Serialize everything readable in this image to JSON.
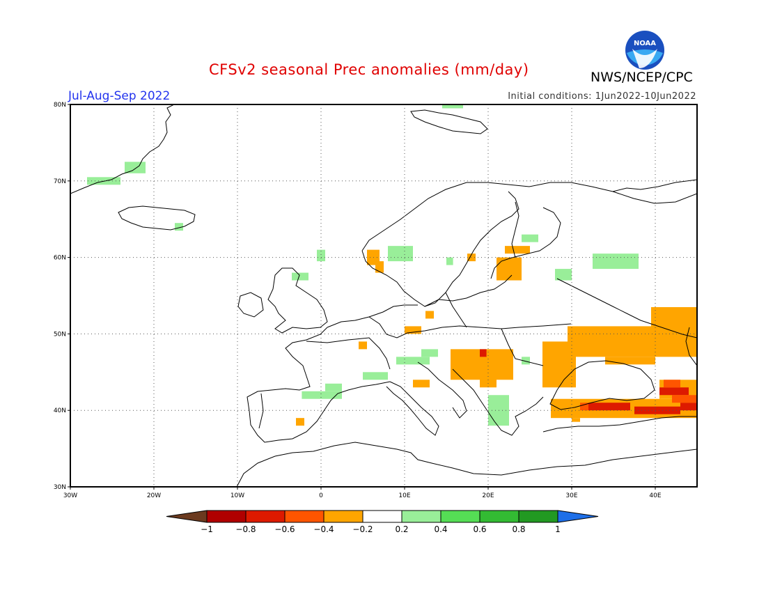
{
  "header": {
    "title": "CFSv2 seasonal Prec anomalies (mm/day)",
    "org": "NWS/NCEP/CPC",
    "period": "Jul-Aug-Sep 2022",
    "initial_conditions": "Initial conditions: 1Jun2022-10Jun2022"
  },
  "logo": {
    "text": "NOAA"
  },
  "map": {
    "lon_range": [
      -30,
      45
    ],
    "lat_range": [
      30,
      80
    ],
    "lat_ticks": [
      {
        "value": 30,
        "label": "30N"
      },
      {
        "value": 40,
        "label": "40N"
      },
      {
        "value": 50,
        "label": "50N"
      },
      {
        "value": 60,
        "label": "60N"
      },
      {
        "value": 70,
        "label": "70N"
      },
      {
        "value": 80,
        "label": "80N"
      }
    ],
    "lon_ticks": [
      {
        "value": -30,
        "label": "30W"
      },
      {
        "value": -20,
        "label": "20W"
      },
      {
        "value": -10,
        "label": "10W"
      },
      {
        "value": 0,
        "label": "0"
      },
      {
        "value": 10,
        "label": "10E"
      },
      {
        "value": 20,
        "label": "20E"
      },
      {
        "value": 30,
        "label": "30E"
      },
      {
        "value": 40,
        "label": "40E"
      }
    ],
    "grid": "dotted",
    "anomaly_cells_description_units": "lon/lat degrees",
    "anomalies": [
      {
        "lon": [
          -28,
          -24
        ],
        "lat": [
          69.5,
          70.5
        ],
        "level": 0.3
      },
      {
        "lon": [
          -23.5,
          -21
        ],
        "lat": [
          71,
          72.5
        ],
        "level": 0.3
      },
      {
        "lon": [
          -17.5,
          -16.5
        ],
        "lat": [
          63.5,
          64.5
        ],
        "level": 0.3
      },
      {
        "lon": [
          -3.5,
          -1.5
        ],
        "lat": [
          57,
          58
        ],
        "level": 0.3
      },
      {
        "lon": [
          8,
          11
        ],
        "lat": [
          59.5,
          61.5
        ],
        "level": 0.3
      },
      {
        "lon": [
          14.5,
          17
        ],
        "lat": [
          81,
          79.5
        ],
        "level": 0.3
      },
      {
        "lon": [
          15,
          15.8
        ],
        "lat": [
          59,
          60
        ],
        "level": 0.3
      },
      {
        "lon": [
          24,
          26
        ],
        "lat": [
          62,
          63
        ],
        "level": 0.3
      },
      {
        "lon": [
          32.5,
          38
        ],
        "lat": [
          58.5,
          60.5
        ],
        "level": 0.3
      },
      {
        "lon": [
          28,
          30
        ],
        "lat": [
          57,
          58.5
        ],
        "level": 0.3
      },
      {
        "lon": [
          -2.3,
          2.5
        ],
        "lat": [
          41.5,
          42.5
        ],
        "level": 0.3
      },
      {
        "lon": [
          0.5,
          2.5
        ],
        "lat": [
          42.5,
          43.5
        ],
        "level": 0.3
      },
      {
        "lon": [
          5,
          8
        ],
        "lat": [
          44,
          45
        ],
        "level": 0.3
      },
      {
        "lon": [
          9,
          13
        ],
        "lat": [
          46,
          47
        ],
        "level": 0.3
      },
      {
        "lon": [
          12,
          14
        ],
        "lat": [
          47,
          48
        ],
        "level": 0.3
      },
      {
        "lon": [
          20,
          22.5
        ],
        "lat": [
          38,
          42
        ],
        "level": 0.3
      },
      {
        "lon": [
          24,
          25
        ],
        "lat": [
          46,
          47
        ],
        "level": 0.3
      },
      {
        "lon": [
          -0.5,
          0.5
        ],
        "lat": [
          59.5,
          61
        ],
        "level": 0.3
      },
      {
        "lon": [
          5.5,
          7
        ],
        "lat": [
          59,
          61
        ],
        "level": -0.3
      },
      {
        "lon": [
          6.5,
          7.5
        ],
        "lat": [
          58,
          59.5
        ],
        "level": -0.3
      },
      {
        "lon": [
          17.5,
          18.5
        ],
        "lat": [
          59.5,
          60.5
        ],
        "level": -0.3
      },
      {
        "lon": [
          22,
          25
        ],
        "lat": [
          60.5,
          61.5
        ],
        "level": -0.3
      },
      {
        "lon": [
          21,
          24
        ],
        "lat": [
          57,
          60
        ],
        "level": -0.3
      },
      {
        "lon": [
          10,
          12
        ],
        "lat": [
          50,
          51
        ],
        "level": -0.3
      },
      {
        "lon": [
          12.5,
          13.5
        ],
        "lat": [
          52,
          53
        ],
        "level": -0.3
      },
      {
        "lon": [
          4.5,
          5.5
        ],
        "lat": [
          48,
          49
        ],
        "level": -0.3
      },
      {
        "lon": [
          11,
          13
        ],
        "lat": [
          43,
          44
        ],
        "level": -0.3
      },
      {
        "lon": [
          -3,
          -2
        ],
        "lat": [
          38,
          39
        ],
        "level": -0.3
      },
      {
        "lon": [
          15.5,
          23
        ],
        "lat": [
          44,
          48
        ],
        "level": -0.3
      },
      {
        "lon": [
          19,
          21
        ],
        "lat": [
          43,
          45
        ],
        "level": -0.3
      },
      {
        "lon": [
          26.5,
          30.5
        ],
        "lat": [
          43,
          49
        ],
        "level": -0.3
      },
      {
        "lon": [
          29.5,
          45
        ],
        "lat": [
          47,
          51
        ],
        "level": -0.3
      },
      {
        "lon": [
          34,
          40
        ],
        "lat": [
          46,
          47
        ],
        "level": -0.3
      },
      {
        "lon": [
          39.5,
          45
        ],
        "lat": [
          49,
          53.5
        ],
        "level": -0.3
      },
      {
        "lon": [
          27.5,
          45
        ],
        "lat": [
          39,
          41.5
        ],
        "level": -0.3
      },
      {
        "lon": [
          40.5,
          45
        ],
        "lat": [
          41.5,
          44
        ],
        "level": -0.3
      },
      {
        "lon": [
          30,
          31
        ],
        "lat": [
          38.5,
          39
        ],
        "level": -0.3
      },
      {
        "lon": [
          32,
          37
        ],
        "lat": [
          40,
          41
        ],
        "level": -0.7
      },
      {
        "lon": [
          37.5,
          43
        ],
        "lat": [
          39.5,
          40.5
        ],
        "level": -0.7
      },
      {
        "lon": [
          40.5,
          44
        ],
        "lat": [
          42,
          43
        ],
        "level": -0.7
      },
      {
        "lon": [
          43,
          45
        ],
        "lat": [
          40,
          41
        ],
        "level": -0.7
      },
      {
        "lon": [
          19,
          19.8
        ],
        "lat": [
          47,
          48
        ],
        "level": -0.7
      },
      {
        "lon": [
          41,
          43
        ],
        "lat": [
          43,
          44
        ],
        "level": -0.5
      },
      {
        "lon": [
          31,
          32
        ],
        "lat": [
          40,
          41
        ],
        "level": -0.5
      },
      {
        "lon": [
          42,
          45
        ],
        "lat": [
          41,
          42
        ],
        "level": -0.5
      }
    ]
  },
  "colorbar": {
    "levels": [
      "-1",
      "-0.8",
      "-0.6",
      "-0.4",
      "-0.2",
      "0.2",
      "0.4",
      "0.6",
      "0.8",
      "1"
    ],
    "colors": [
      "#6b3a1f",
      "#b00000",
      "#dd1a00",
      "#ff5500",
      "#ffa500",
      "#ffffff",
      "#99ee99",
      "#55dd55",
      "#33bb33",
      "#229922",
      "#1e6fe8"
    ]
  }
}
